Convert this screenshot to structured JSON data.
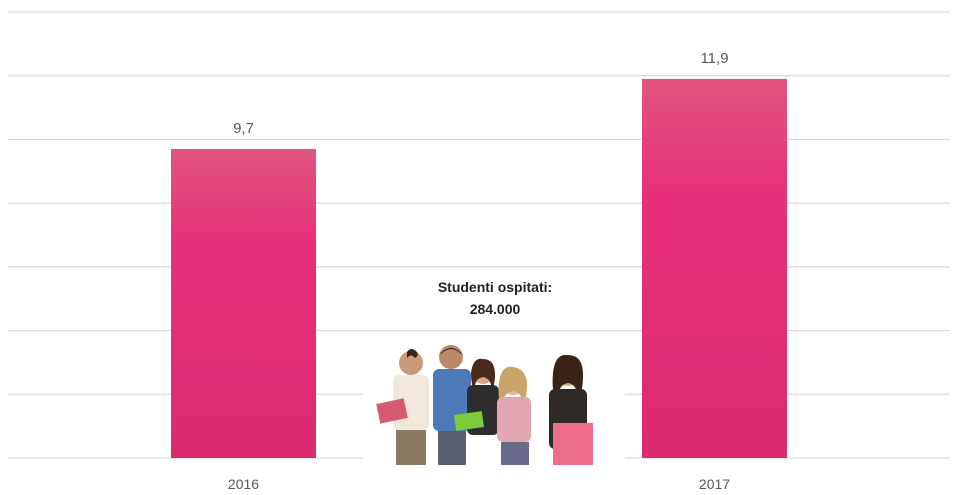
{
  "chart_data": {
    "type": "bar",
    "categories": [
      "2016",
      "2017"
    ],
    "values": [
      9.7,
      11.9
    ],
    "value_labels": [
      "9,7",
      "11,9"
    ],
    "title": "",
    "xlabel": "",
    "ylabel": "",
    "ylim": [
      0,
      14
    ],
    "grid": true,
    "bar_color": "#e8307a"
  },
  "annotation": {
    "line1": "Studenti ospitati:",
    "line2": "284.000"
  },
  "photo": {
    "icon": "students-group-photo"
  }
}
